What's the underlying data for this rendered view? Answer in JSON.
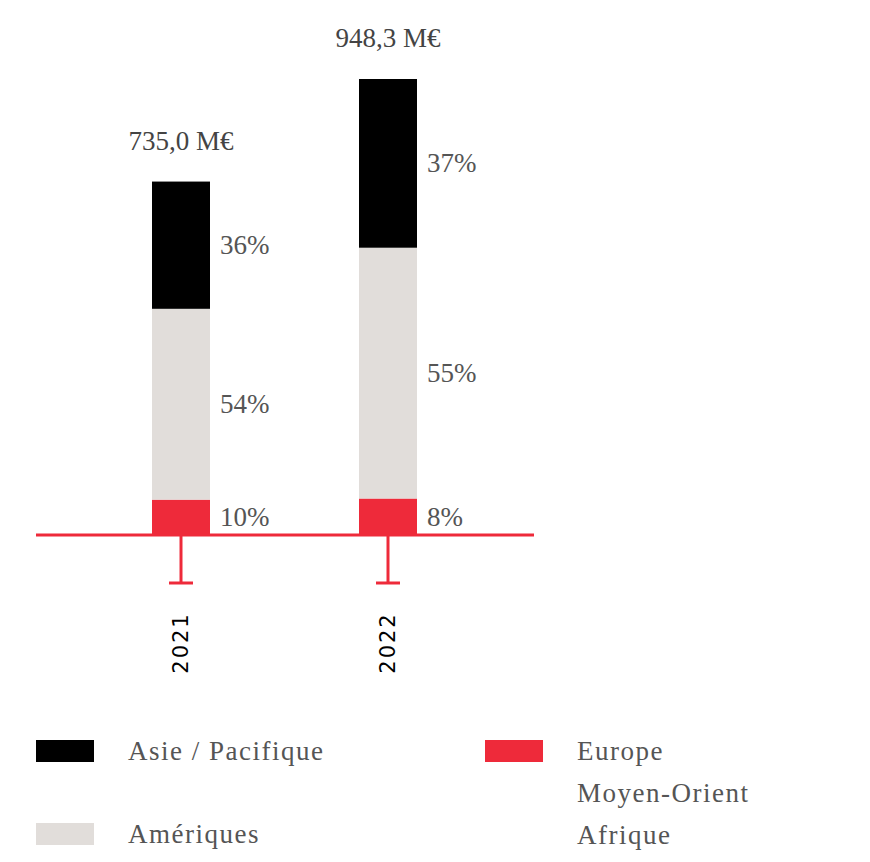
{
  "chart_data": {
    "type": "bar",
    "stacked": true,
    "data_labels": true,
    "tick_labels": "x",
    "categories": [
      "2021",
      "2022"
    ],
    "totals": [
      735.0,
      948.3
    ],
    "total_labels": [
      "735,0 M€",
      "948,3 M€"
    ],
    "ylim": [
      0,
      948.3
    ],
    "series": [
      {
        "name": "Asie / Pacifique",
        "color": "#000000",
        "values": [
          36,
          37
        ],
        "value_labels": [
          "36%",
          "37%"
        ]
      },
      {
        "name": "Amériques",
        "color": "#e1ddda",
        "values": [
          54,
          55
        ],
        "value_labels": [
          "54%",
          "55%"
        ]
      },
      {
        "name": "Europe Moyen-Orient Afrique",
        "color": "#ee2a3a",
        "values": [
          10,
          8
        ],
        "value_labels": [
          "10%",
          "8%"
        ]
      }
    ]
  }
}
